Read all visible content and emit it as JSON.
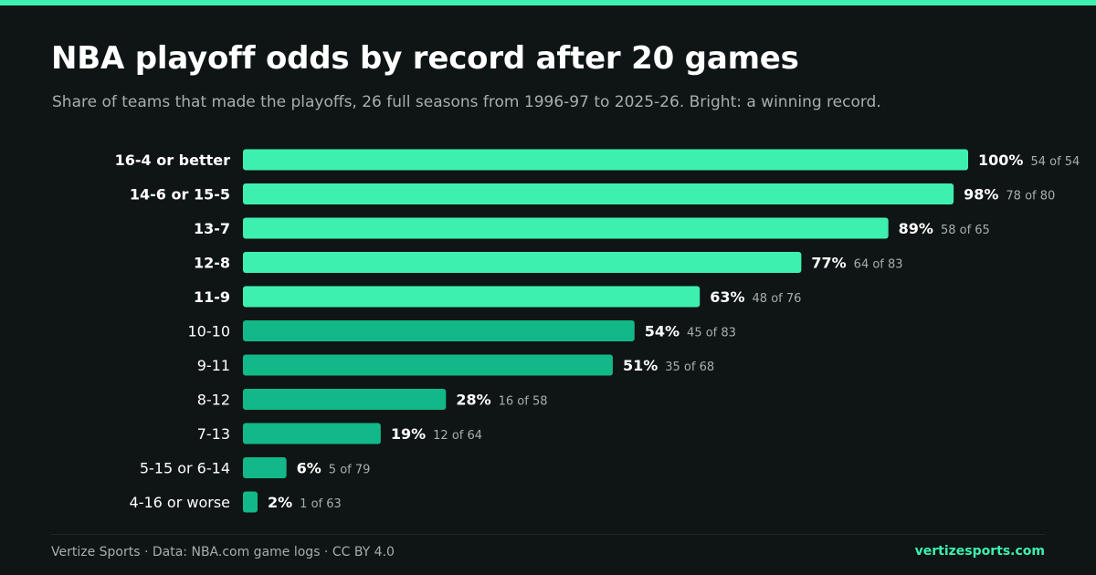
{
  "header": {
    "title": "NBA playoff odds by record after 20 games",
    "subtitle": "Share of teams that made the playoffs, 26 full seasons from 1996-97 to 2025-26. Bright: a winning record."
  },
  "footer": {
    "credit": "Vertize Sports · Data: NBA.com game logs · CC BY 4.0",
    "site": "vertizesports.com"
  },
  "colors": {
    "background": "#0e1514",
    "accent": "#3ef0b0",
    "winning_bar": "#3ef0b0",
    "other_bar": "#12b887",
    "muted_text": "#a7afad"
  },
  "chart_data": {
    "type": "bar",
    "orientation": "horizontal",
    "title": "NBA playoff odds by record after 20 games",
    "subtitle": "Share of teams that made the playoffs, 26 full seasons from 1996-97 to 2025-26. Bright: a winning record.",
    "xlabel": "",
    "ylabel": "",
    "xlim": [
      0,
      100
    ],
    "grid": false,
    "categories": [
      "16-4 or better",
      "14-6 or 15-5",
      "13-7",
      "12-8",
      "11-9",
      "10-10",
      "9-11",
      "8-12",
      "7-13",
      "5-15 or 6-14",
      "4-16 or worse"
    ],
    "values": [
      100,
      98,
      89,
      77,
      63,
      54,
      51,
      28,
      19,
      6,
      2
    ],
    "value_labels": [
      "100%",
      "98%",
      "89%",
      "77%",
      "63%",
      "54%",
      "51%",
      "28%",
      "19%",
      "6%",
      "2%"
    ],
    "counts": [
      "54 of 54",
      "78 of 80",
      "58 of 65",
      "64 of 83",
      "48 of 76",
      "45 of 83",
      "35 of 68",
      "16 of 58",
      "12 of 64",
      "5 of 79",
      "1 of 63"
    ],
    "winning_record": [
      true,
      true,
      true,
      true,
      true,
      false,
      false,
      false,
      false,
      false,
      false
    ]
  }
}
